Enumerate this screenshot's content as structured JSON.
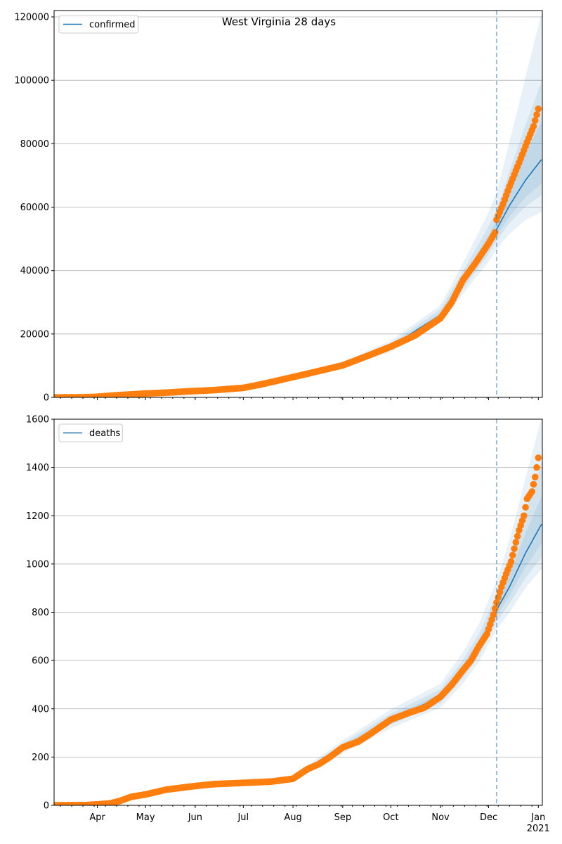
{
  "chart_data": [
    {
      "type": "line",
      "title": "West Virginia 28 days",
      "x_unit": "days since 2020-03-05",
      "xlim": [
        0,
        304.5
      ],
      "ylim": [
        0,
        122000
      ],
      "yticks": [
        0,
        20000,
        40000,
        60000,
        80000,
        100000,
        120000
      ],
      "ytick_labels": [
        "0",
        "20000",
        "40000",
        "60000",
        "80000",
        "100000",
        "120000"
      ],
      "grid": "y",
      "legend": {
        "placement": "top-left",
        "label": "confirmed"
      },
      "forecast_start_day": 276,
      "observed": [
        [
          0,
          0
        ],
        [
          10,
          5
        ],
        [
          20,
          60
        ],
        [
          27,
          200
        ],
        [
          40,
          700
        ],
        [
          57,
          1200
        ],
        [
          70,
          1500
        ],
        [
          88,
          2000
        ],
        [
          100,
          2300
        ],
        [
          118,
          3000
        ],
        [
          130,
          4200
        ],
        [
          149,
          6400
        ],
        [
          165,
          8300
        ],
        [
          180,
          10100
        ],
        [
          195,
          13000
        ],
        [
          210,
          16000
        ],
        [
          225,
          19500
        ],
        [
          241,
          25000
        ],
        [
          248,
          30000
        ],
        [
          255,
          37000
        ],
        [
          263,
          42500
        ],
        [
          271,
          48500
        ],
        [
          275,
          52000
        ],
        [
          276,
          56000
        ],
        [
          280,
          61000
        ],
        [
          284,
          66500
        ],
        [
          290,
          74000
        ],
        [
          295,
          80500
        ],
        [
          299,
          85500
        ],
        [
          302,
          91000
        ]
      ],
      "model": [
        [
          0,
          0
        ],
        [
          27,
          200
        ],
        [
          57,
          1200
        ],
        [
          88,
          2000
        ],
        [
          118,
          3000
        ],
        [
          149,
          6400
        ],
        [
          180,
          10100
        ],
        [
          210,
          16000
        ],
        [
          241,
          26000
        ],
        [
          255,
          36500
        ],
        [
          271,
          48500
        ],
        [
          276,
          53000
        ],
        [
          284,
          60500
        ],
        [
          294,
          68500
        ],
        [
          304,
          75000
        ]
      ],
      "bands": [
        {
          "lo": [
            [
              0,
              0.9
            ],
            [
              240,
              0.9
            ],
            [
              276,
              0.88
            ],
            [
              304,
              0.78
            ]
          ],
          "hi": [
            [
              0,
              1.1
            ],
            [
              240,
              1.12
            ],
            [
              276,
              1.22
            ],
            [
              304,
              1.62
            ]
          ]
        },
        {
          "lo": [
            [
              0,
              0.94
            ],
            [
              240,
              0.94
            ],
            [
              276,
              0.93
            ],
            [
              304,
              0.85
            ]
          ],
          "hi": [
            [
              0,
              1.06
            ],
            [
              240,
              1.07
            ],
            [
              276,
              1.12
            ],
            [
              304,
              1.33
            ]
          ]
        },
        {
          "lo": [
            [
              0,
              0.97
            ],
            [
              240,
              0.97
            ],
            [
              276,
              0.96
            ],
            [
              304,
              0.9
            ]
          ],
          "hi": [
            [
              0,
              1.03
            ],
            [
              240,
              1.03
            ],
            [
              276,
              1.06
            ],
            [
              304,
              1.16
            ]
          ]
        }
      ]
    },
    {
      "type": "line",
      "x_unit": "days since 2020-03-05",
      "xlim": [
        0,
        304.5
      ],
      "ylim": [
        0,
        1600
      ],
      "yticks": [
        0,
        200,
        400,
        600,
        800,
        1000,
        1200,
        1400,
        1600
      ],
      "ytick_labels": [
        "0",
        "200",
        "400",
        "600",
        "800",
        "1000",
        "1200",
        "1400",
        "1600"
      ],
      "xticks": [
        27,
        57,
        88,
        118,
        149,
        180,
        210,
        241,
        271,
        302
      ],
      "xtick_labels": [
        "Apr",
        "May",
        "Jun",
        "Jul",
        "Aug",
        "Sep",
        "Oct",
        "Nov",
        "Dec",
        "Jan"
      ],
      "xtick_year_label": "2021",
      "grid": "y",
      "legend": {
        "placement": "top-left",
        "label": "deaths"
      },
      "forecast_start_day": 276,
      "observed": [
        [
          0,
          0
        ],
        [
          20,
          1
        ],
        [
          27,
          4
        ],
        [
          35,
          8
        ],
        [
          41,
          18
        ],
        [
          48,
          35
        ],
        [
          57,
          45
        ],
        [
          70,
          65
        ],
        [
          88,
          80
        ],
        [
          100,
          88
        ],
        [
          118,
          93
        ],
        [
          135,
          98
        ],
        [
          149,
          110
        ],
        [
          158,
          150
        ],
        [
          165,
          170
        ],
        [
          172,
          200
        ],
        [
          180,
          240
        ],
        [
          190,
          265
        ],
        [
          197,
          295
        ],
        [
          210,
          355
        ],
        [
          222,
          385
        ],
        [
          231,
          405
        ],
        [
          241,
          450
        ],
        [
          248,
          500
        ],
        [
          255,
          560
        ],
        [
          260,
          600
        ],
        [
          265,
          660
        ],
        [
          270,
          710
        ],
        [
          274,
          790
        ],
        [
          276,
          840
        ],
        [
          279,
          905
        ],
        [
          282,
          960
        ],
        [
          285,
          1010
        ],
        [
          288,
          1090
        ],
        [
          290,
          1140
        ],
        [
          293,
          1200
        ],
        [
          295,
          1270
        ],
        [
          298,
          1300
        ],
        [
          300,
          1360
        ],
        [
          302,
          1440
        ]
      ],
      "model": [
        [
          0,
          0
        ],
        [
          27,
          4
        ],
        [
          57,
          45
        ],
        [
          88,
          80
        ],
        [
          118,
          93
        ],
        [
          149,
          110
        ],
        [
          180,
          240
        ],
        [
          210,
          355
        ],
        [
          241,
          450
        ],
        [
          255,
          560
        ],
        [
          265,
          660
        ],
        [
          276,
          810
        ],
        [
          284,
          905
        ],
        [
          294,
          1045
        ],
        [
          304,
          1165
        ]
      ],
      "bands": [
        {
          "lo": [
            [
              0,
              0.9
            ],
            [
              240,
              0.9
            ],
            [
              276,
              0.9
            ],
            [
              304,
              0.84
            ]
          ],
          "hi": [
            [
              0,
              1.12
            ],
            [
              240,
              1.12
            ],
            [
              276,
              1.15
            ],
            [
              304,
              1.38
            ]
          ]
        },
        {
          "lo": [
            [
              0,
              0.94
            ],
            [
              240,
              0.94
            ],
            [
              276,
              0.94
            ],
            [
              304,
              0.88
            ]
          ],
          "hi": [
            [
              0,
              1.07
            ],
            [
              240,
              1.07
            ],
            [
              276,
              1.08
            ],
            [
              304,
              1.22
            ]
          ]
        },
        {
          "lo": [
            [
              0,
              0.97
            ],
            [
              240,
              0.97
            ],
            [
              276,
              0.97
            ],
            [
              304,
              0.93
            ]
          ],
          "hi": [
            [
              0,
              1.03
            ],
            [
              240,
              1.03
            ],
            [
              276,
              1.04
            ],
            [
              304,
              1.1
            ]
          ]
        }
      ]
    }
  ],
  "colors": {
    "model": "#1f77b4",
    "observed": "#ff7f0e",
    "band": "#1f77b4",
    "grid": "#b0b0b0"
  }
}
